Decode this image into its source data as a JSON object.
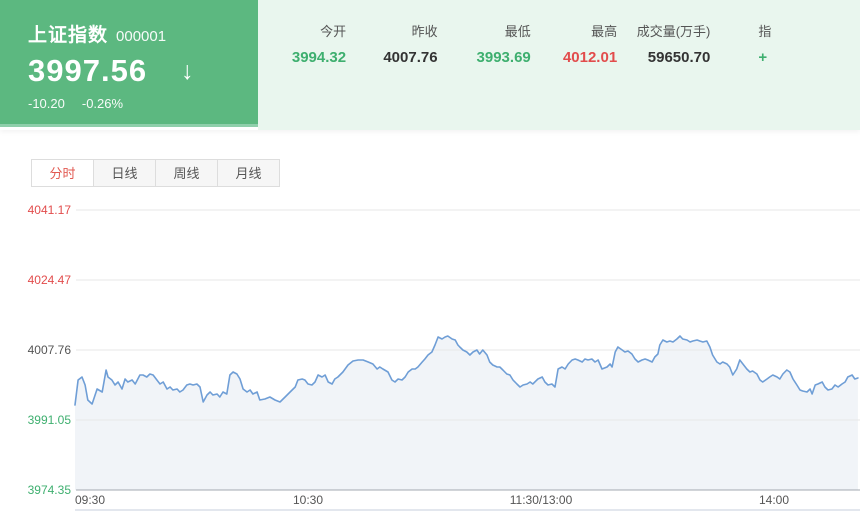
{
  "header": {
    "index_name": "上证指数",
    "index_code": "000001",
    "price": "3997.56",
    "direction_icon": "↓",
    "change": "-10.20",
    "change_pct": "-0.26%",
    "stats": [
      {
        "label": "今开",
        "value": "3994.32",
        "color": "green"
      },
      {
        "label": "昨收",
        "value": "4007.76",
        "color": "dark"
      },
      {
        "label": "最低",
        "value": "3993.69",
        "color": "green"
      },
      {
        "label": "最高",
        "value": "4012.01",
        "color": "red"
      },
      {
        "label": "成交量(万手)",
        "value": "59650.70",
        "color": "dark"
      },
      {
        "label": "指",
        "value": "+",
        "color": "green"
      }
    ]
  },
  "tabs": [
    {
      "label": "分时",
      "active": true
    },
    {
      "label": "日线",
      "active": false
    },
    {
      "label": "周线",
      "active": false
    },
    {
      "label": "月线",
      "active": false
    }
  ],
  "colors": {
    "header_green": "#5cb880",
    "header_light_green": "#e9f6ee",
    "value_colors": {
      "green": "#3eaf6f",
      "red": "#e24c4c",
      "dark": "#333333"
    },
    "tab_active_text": "#e25a52",
    "line_blue": "#6f9ed6",
    "area_fill": "#f1f4f8",
    "gridline": "#e7e7e7",
    "axis_line": "#a3a9b0",
    "bottom_divider": "#e3e7ee",
    "x_label": "#555555"
  },
  "chart_data": {
    "type": "line",
    "title": "上证指数 分时走势",
    "prev_close": 4007.76,
    "open": 3994.32,
    "high": 4012.01,
    "low": 3993.69,
    "grid": true,
    "legend": "none",
    "ylim": [
      3974.35,
      4041.17
    ],
    "xlabel": "",
    "ylabel": "",
    "y_ticks": [
      {
        "value": 4041.17,
        "label": "4041.17",
        "color": "#e24c4c"
      },
      {
        "value": 4024.47,
        "label": "4024.47",
        "color": "#e24c4c"
      },
      {
        "value": 4007.76,
        "label": "4007.76",
        "color": "#555555"
      },
      {
        "value": 3991.05,
        "label": "3991.05",
        "color": "#3eaf6f"
      },
      {
        "value": 3974.35,
        "label": "3974.35",
        "color": "#3eaf6f"
      }
    ],
    "x_ticks": [
      {
        "t": 0,
        "label": "09:30",
        "align": "start"
      },
      {
        "t": 60,
        "label": "10:30",
        "align": "middle"
      },
      {
        "t": 120,
        "label": "11:30/13:00",
        "align": "middle"
      },
      {
        "t": 180,
        "label": "14:00",
        "align": "middle"
      }
    ],
    "points": [
      [
        0,
        3994.63
      ],
      [
        0.8,
        4000.6
      ],
      [
        1.8,
        4001.32
      ],
      [
        2.6,
        3999.4
      ],
      [
        3.3,
        3995.82
      ],
      [
        4.4,
        3994.87
      ],
      [
        5.7,
        3998.45
      ],
      [
        7,
        3997.73
      ],
      [
        8,
        4002.99
      ],
      [
        8.5,
        4001.32
      ],
      [
        9.5,
        4000.6
      ],
      [
        10.3,
        3999.4
      ],
      [
        11.1,
        4000.12
      ],
      [
        12.1,
        3998.45
      ],
      [
        12.9,
        4000.84
      ],
      [
        13.6,
        4000.12
      ],
      [
        14.7,
        4000.6
      ],
      [
        15.5,
        3999.64
      ],
      [
        16.7,
        4001.79
      ],
      [
        17.5,
        4001.79
      ],
      [
        18.5,
        4001.32
      ],
      [
        19.3,
        4002.03
      ],
      [
        20.1,
        4001.79
      ],
      [
        21.1,
        4000.6
      ],
      [
        21.9,
        3999.64
      ],
      [
        22.7,
        4000.12
      ],
      [
        23.7,
        3998.45
      ],
      [
        24.5,
        3998.93
      ],
      [
        25.2,
        3998.21
      ],
      [
        26.3,
        3998.45
      ],
      [
        27,
        3997.73
      ],
      [
        27.8,
        3998.21
      ],
      [
        28.8,
        3999.4
      ],
      [
        29.6,
        3999.64
      ],
      [
        30.4,
        3999.4
      ],
      [
        31.4,
        3999.64
      ],
      [
        32.2,
        3998.93
      ],
      [
        33,
        3995.35
      ],
      [
        34,
        3997.02
      ],
      [
        34.8,
        3997.73
      ],
      [
        35.5,
        3997.02
      ],
      [
        36.6,
        3997.26
      ],
      [
        37.3,
        3996.54
      ],
      [
        38.1,
        3997.73
      ],
      [
        39.1,
        3997.26
      ],
      [
        39.9,
        4001.79
      ],
      [
        40.7,
        4002.51
      ],
      [
        41.7,
        4002.03
      ],
      [
        42.5,
        4000.84
      ],
      [
        43.3,
        3998.45
      ],
      [
        44.3,
        3997.73
      ],
      [
        45.1,
        3998.21
      ],
      [
        45.8,
        3997.26
      ],
      [
        46.9,
        3997.73
      ],
      [
        47.6,
        3995.82
      ],
      [
        48.9,
        3996.06
      ],
      [
        50.2,
        3996.54
      ],
      [
        51.5,
        3995.82
      ],
      [
        52.8,
        3995.35
      ],
      [
        54.1,
        3996.54
      ],
      [
        55.4,
        3997.73
      ],
      [
        56.7,
        3998.93
      ],
      [
        57.4,
        4000.6
      ],
      [
        58.5,
        4000.84
      ],
      [
        59.2,
        4000.6
      ],
      [
        60,
        3999.64
      ],
      [
        61,
        3999.4
      ],
      [
        61.8,
        4000.12
      ],
      [
        62.6,
        4001.79
      ],
      [
        63.6,
        4001.32
      ],
      [
        64.4,
        4001.79
      ],
      [
        65.2,
        4000.12
      ],
      [
        66.2,
        3999.64
      ],
      [
        66.9,
        4000.84
      ],
      [
        67.7,
        4001.32
      ],
      [
        69,
        4002.51
      ],
      [
        70.3,
        4004.18
      ],
      [
        71.6,
        4005.13
      ],
      [
        72.9,
        4005.37
      ],
      [
        74.2,
        4005.37
      ],
      [
        75.5,
        4004.9
      ],
      [
        76.7,
        4004.42
      ],
      [
        77.8,
        4003.22
      ],
      [
        78.5,
        4003.7
      ],
      [
        79.3,
        4003.22
      ],
      [
        80.6,
        4002.51
      ],
      [
        81.6,
        4000.6
      ],
      [
        82.4,
        4000.12
      ],
      [
        83.2,
        4000.84
      ],
      [
        84.2,
        4000.6
      ],
      [
        85,
        4001.32
      ],
      [
        85.8,
        4002.51
      ],
      [
        86.8,
        4003.22
      ],
      [
        87.6,
        4003.22
      ],
      [
        88.3,
        4003.7
      ],
      [
        89.4,
        4004.9
      ],
      [
        90.1,
        4005.61
      ],
      [
        90.9,
        4006.57
      ],
      [
        91.9,
        4007.28
      ],
      [
        92.7,
        4008.95
      ],
      [
        93.5,
        4010.86
      ],
      [
        94.5,
        4010.39
      ],
      [
        95.3,
        4010.86
      ],
      [
        96,
        4011.1
      ],
      [
        97.1,
        4010.39
      ],
      [
        97.9,
        4010.15
      ],
      [
        98.6,
        4008.95
      ],
      [
        99.1,
        4008.48
      ],
      [
        99.9,
        4007.76
      ],
      [
        100.9,
        4007.28
      ],
      [
        101.7,
        4006.57
      ],
      [
        102.5,
        4007.28
      ],
      [
        103.5,
        4007.76
      ],
      [
        104.2,
        4006.81
      ],
      [
        105,
        4007.76
      ],
      [
        106.1,
        4006.57
      ],
      [
        106.8,
        4004.9
      ],
      [
        107.6,
        4004.18
      ],
      [
        108.7,
        4003.7
      ],
      [
        109.4,
        4003.7
      ],
      [
        110.2,
        4002.99
      ],
      [
        111.2,
        4002.03
      ],
      [
        112,
        4001.79
      ],
      [
        112.8,
        4000.6
      ],
      [
        113.8,
        3999.64
      ],
      [
        114.6,
        3998.93
      ],
      [
        115.4,
        3999.4
      ],
      [
        116.4,
        3999.64
      ],
      [
        117.2,
        4000.12
      ],
      [
        117.9,
        3999.64
      ],
      [
        119.2,
        4000.84
      ],
      [
        120.3,
        4001.32
      ],
      [
        121,
        4000.12
      ],
      [
        121.8,
        3999.4
      ],
      [
        122.8,
        3999.64
      ],
      [
        123.6,
        3998.93
      ],
      [
        124.4,
        4003.22
      ],
      [
        125.4,
        4003.7
      ],
      [
        126.2,
        4003.22
      ],
      [
        127,
        4004.42
      ],
      [
        128,
        4005.37
      ],
      [
        128.8,
        4005.61
      ],
      [
        129.5,
        4005.37
      ],
      [
        130.6,
        4004.9
      ],
      [
        131.3,
        4005.61
      ],
      [
        132.1,
        4005.37
      ],
      [
        133.1,
        4005.61
      ],
      [
        133.9,
        4004.9
      ],
      [
        134.7,
        4005.37
      ],
      [
        135.7,
        4003.22
      ],
      [
        137,
        4003.7
      ],
      [
        137.8,
        4004.42
      ],
      [
        138.3,
        4003.7
      ],
      [
        139.1,
        4007.28
      ],
      [
        139.8,
        4008.48
      ],
      [
        140.9,
        4007.76
      ],
      [
        141.6,
        4007.28
      ],
      [
        142.4,
        4007.52
      ],
      [
        143.4,
        4006.81
      ],
      [
        144.2,
        4005.61
      ],
      [
        145,
        4004.9
      ],
      [
        146,
        4005.37
      ],
      [
        146.8,
        4005.61
      ],
      [
        147.5,
        4005.37
      ],
      [
        148.6,
        4004.9
      ],
      [
        149.3,
        4006.09
      ],
      [
        150.1,
        4006.81
      ],
      [
        150.6,
        4008.95
      ],
      [
        151.4,
        4010.15
      ],
      [
        152.4,
        4009.67
      ],
      [
        153.2,
        4009.91
      ],
      [
        154,
        4009.67
      ],
      [
        155,
        4010.39
      ],
      [
        155.8,
        4011.1
      ],
      [
        156.5,
        4010.39
      ],
      [
        157.6,
        4010.15
      ],
      [
        158.4,
        4009.67
      ],
      [
        159.1,
        4009.91
      ],
      [
        160.2,
        4010.15
      ],
      [
        160.9,
        4009.91
      ],
      [
        161.7,
        4009.67
      ],
      [
        162.7,
        4009.91
      ],
      [
        163.5,
        4008.48
      ],
      [
        164.2,
        4006.57
      ],
      [
        165.3,
        4004.9
      ],
      [
        166.1,
        4004.42
      ],
      [
        166.8,
        4004.9
      ],
      [
        167.9,
        4004.42
      ],
      [
        168.6,
        4003.7
      ],
      [
        169.4,
        4001.79
      ],
      [
        170.4,
        4003.22
      ],
      [
        171.2,
        4005.37
      ],
      [
        172,
        4004.42
      ],
      [
        173,
        4003.22
      ],
      [
        173.8,
        4002.51
      ],
      [
        174.5,
        4002.75
      ],
      [
        175.6,
        4002.03
      ],
      [
        176.4,
        4000.6
      ],
      [
        177.1,
        4000.12
      ],
      [
        178.2,
        4000.84
      ],
      [
        178.9,
        4001.32
      ],
      [
        179.7,
        4001.79
      ],
      [
        180.8,
        4001.32
      ],
      [
        181.5,
        4000.84
      ],
      [
        182.3,
        4002.03
      ],
      [
        183.3,
        4002.99
      ],
      [
        184.1,
        4002.51
      ],
      [
        184.9,
        4000.84
      ],
      [
        185.9,
        3999.4
      ],
      [
        186.7,
        3998.21
      ],
      [
        187.4,
        3997.97
      ],
      [
        188.5,
        3997.73
      ],
      [
        189.3,
        3998.45
      ],
      [
        189.8,
        3997.26
      ],
      [
        190.6,
        3999.4
      ],
      [
        191.3,
        3999.64
      ],
      [
        192.4,
        4000.12
      ],
      [
        193.1,
        3998.93
      ],
      [
        193.9,
        3998.21
      ],
      [
        194.9,
        3998.45
      ],
      [
        195.7,
        3999.4
      ],
      [
        196.5,
        3998.93
      ],
      [
        197.5,
        3999.64
      ],
      [
        198.3,
        4000.12
      ],
      [
        199,
        4001.32
      ],
      [
        200.1,
        4001.79
      ],
      [
        200.8,
        4000.84
      ],
      [
        201.6,
        4001.08
      ]
    ]
  }
}
